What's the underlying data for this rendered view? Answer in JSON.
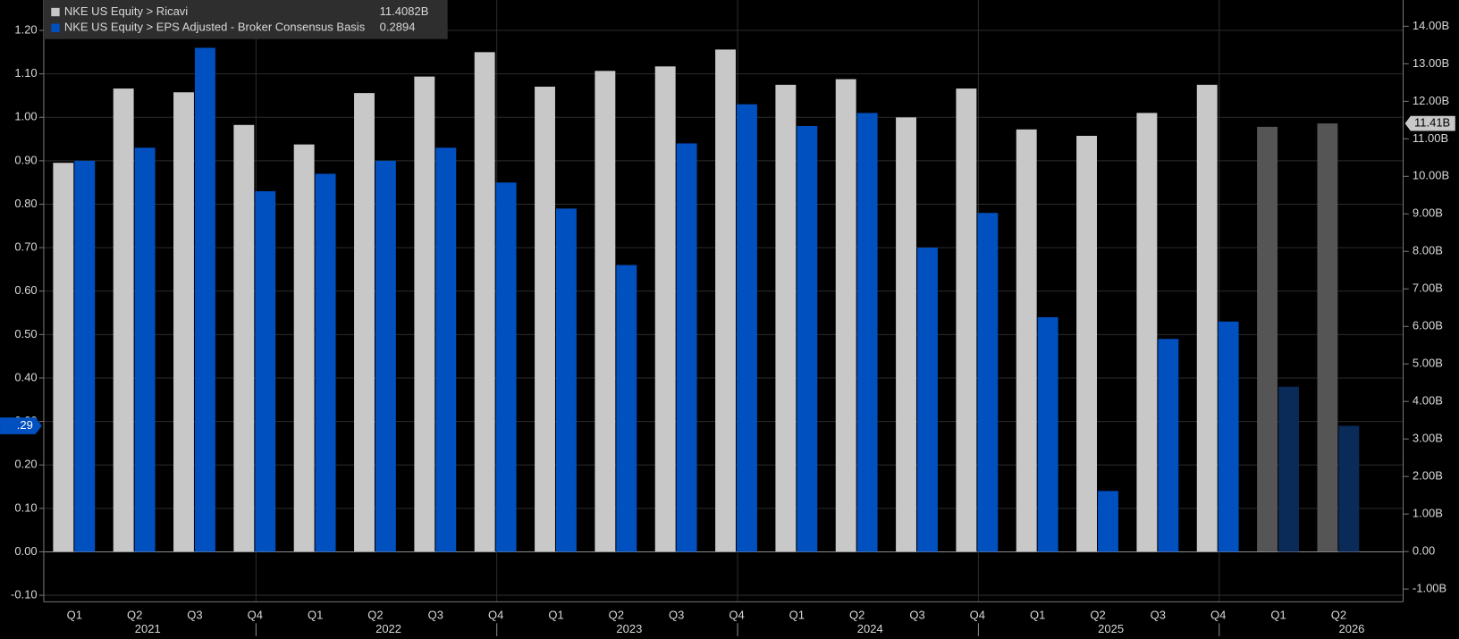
{
  "chart_data": {
    "type": "bar",
    "categories": [
      "Q1",
      "Q2",
      "Q3",
      "Q4",
      "Q1",
      "Q2",
      "Q3",
      "Q4",
      "Q1",
      "Q2",
      "Q3",
      "Q4",
      "Q1",
      "Q2",
      "Q3",
      "Q4",
      "Q1",
      "Q2",
      "Q3",
      "Q4",
      "Q1",
      "Q2"
    ],
    "year_labels": [
      null,
      "2021",
      null,
      null,
      null,
      "2022",
      null,
      null,
      null,
      "2023",
      null,
      null,
      null,
      "2024",
      null,
      null,
      null,
      "2025",
      null,
      null,
      null,
      "2026"
    ],
    "series": [
      {
        "name": "NKE US Equity > Ricavi",
        "legend_value": "11.4082B",
        "value_tag": "11.41B",
        "axis": "y2",
        "color": "#c8c8c8",
        "colors": [
          "#c8c8c8",
          "#c8c8c8",
          "#c8c8c8",
          "#c8c8c8",
          "#c8c8c8",
          "#c8c8c8",
          "#c8c8c8",
          "#c8c8c8",
          "#c8c8c8",
          "#c8c8c8",
          "#c8c8c8",
          "#c8c8c8",
          "#c8c8c8",
          "#c8c8c8",
          "#c8c8c8",
          "#c8c8c8",
          "#c8c8c8",
          "#c8c8c8",
          "#c8c8c8",
          "#c8c8c8",
          "#555555",
          "#555555"
        ],
        "values": [
          10.36,
          12.34,
          12.24,
          11.37,
          10.85,
          12.22,
          12.66,
          13.31,
          12.39,
          12.81,
          12.93,
          13.38,
          12.44,
          12.59,
          11.57,
          12.34,
          11.25,
          11.08,
          11.69,
          12.44,
          11.32,
          11.41
        ]
      },
      {
        "name": "NKE US Equity > EPS Adjusted - Broker Consensus Basis",
        "legend_value": "0.2894",
        "value_tag": ".29",
        "axis": "y",
        "color": "#0050c0",
        "colors": [
          "#0050c0",
          "#0050c0",
          "#0050c0",
          "#0050c0",
          "#0050c0",
          "#0050c0",
          "#0050c0",
          "#0050c0",
          "#0050c0",
          "#0050c0",
          "#0050c0",
          "#0050c0",
          "#0050c0",
          "#0050c0",
          "#0050c0",
          "#0050c0",
          "#0050c0",
          "#0050c0",
          "#0050c0",
          "#0050c0",
          "#0a2a58",
          "#0a2a58"
        ],
        "values": [
          0.9,
          0.93,
          1.16,
          0.83,
          0.87,
          0.9,
          0.93,
          0.85,
          0.79,
          0.66,
          0.94,
          1.03,
          0.98,
          1.01,
          0.7,
          0.78,
          0.54,
          0.14,
          0.49,
          0.53,
          0.38,
          0.29
        ]
      }
    ],
    "ylim": [
      -0.115,
      1.27
    ],
    "yticks": [
      {
        "value": -0.1,
        "label": "-0.10"
      },
      {
        "value": 0,
        "label": "0.00"
      },
      {
        "value": 0.1,
        "label": "0.10"
      },
      {
        "value": 0.2,
        "label": "0.20"
      },
      {
        "value": 0.3,
        "label": "0.30"
      },
      {
        "value": 0.4,
        "label": "0.40"
      },
      {
        "value": 0.5,
        "label": "0.50"
      },
      {
        "value": 0.6,
        "label": "0.60"
      },
      {
        "value": 0.7,
        "label": "0.70"
      },
      {
        "value": 0.8,
        "label": "0.80"
      },
      {
        "value": 0.9,
        "label": "0.90"
      },
      {
        "value": 1.0,
        "label": "1.00"
      },
      {
        "value": 1.1,
        "label": "1.10"
      },
      {
        "value": 1.2,
        "label": "1.20"
      }
    ],
    "y2lim": [
      -1.34,
      14.7
    ],
    "y2ticks": [
      {
        "value": -1,
        "label": "-1.00B"
      },
      {
        "value": 0,
        "label": "0.00"
      },
      {
        "value": 1,
        "label": "1.00B"
      },
      {
        "value": 2,
        "label": "2.00B"
      },
      {
        "value": 3,
        "label": "3.00B"
      },
      {
        "value": 4,
        "label": "4.00B"
      },
      {
        "value": 5,
        "label": "5.00B"
      },
      {
        "value": 6,
        "label": "6.00B"
      },
      {
        "value": 7,
        "label": "7.00B"
      },
      {
        "value": 8,
        "label": "8.00B"
      },
      {
        "value": 9,
        "label": "9.00B"
      },
      {
        "value": 10,
        "label": "10.00B"
      },
      {
        "value": 11,
        "label": "11.00B"
      },
      {
        "value": 12,
        "label": "12.00B"
      },
      {
        "value": 13,
        "label": "13.00B"
      },
      {
        "value": 14,
        "label": "14.00B"
      }
    ],
    "grid": true
  }
}
